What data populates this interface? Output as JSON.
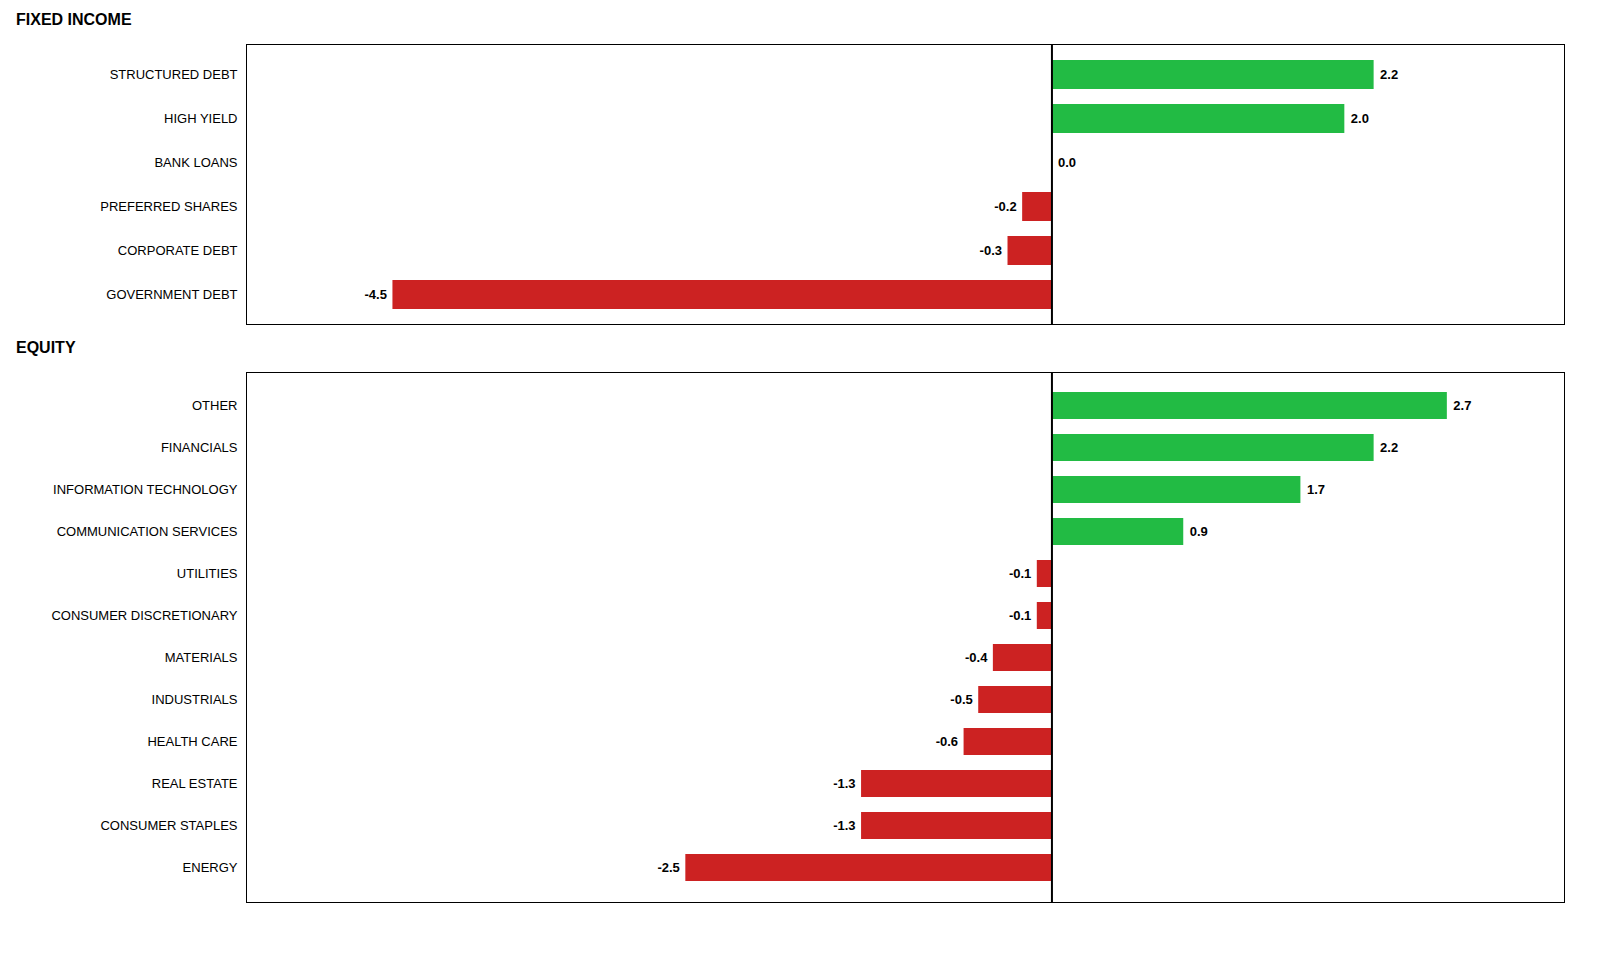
{
  "chart_data": [
    {
      "type": "bar",
      "orientation": "horizontal",
      "title": "FIXED INCOME",
      "categories": [
        "STRUCTURED DEBT",
        "HIGH YIELD",
        "BANK LOANS",
        "PREFERRED SHARES",
        "CORPORATE DEBT",
        "GOVERNMENT DEBT"
      ],
      "values": [
        2.2,
        2.0,
        0.0,
        -0.2,
        -0.3,
        -4.5
      ],
      "value_labels": [
        "2.2",
        "2.0",
        "0.0",
        "-0.2",
        "-0.3",
        "-4.5"
      ],
      "colors": [
        "#22bb44",
        "#22bb44",
        "#000000",
        "#cc2222",
        "#cc2222",
        "#cc2222"
      ],
      "xlim": [
        -5.5,
        3.5
      ],
      "data_labels": true,
      "tick_labels": "y",
      "grid": false
    },
    {
      "type": "bar",
      "orientation": "horizontal",
      "title": "EQUITY",
      "categories": [
        "OTHER",
        "FINANCIALS",
        "INFORMATION TECHNOLOGY",
        "COMMUNICATION SERVICES",
        "UTILITIES",
        "CONSUMER DISCRETIONARY",
        "MATERIALS",
        "INDUSTRIALS",
        "HEALTH CARE",
        "REAL ESTATE",
        "CONSUMER STAPLES",
        "ENERGY"
      ],
      "values": [
        2.7,
        2.2,
        1.7,
        0.9,
        -0.1,
        -0.1,
        -0.4,
        -0.5,
        -0.6,
        -1.3,
        -1.3,
        -2.5
      ],
      "value_labels": [
        "2.7",
        "2.2",
        "1.7",
        "0.9",
        "-0.1",
        "-0.1",
        "-0.4",
        "-0.5",
        "-0.6",
        "-1.3",
        "-1.3",
        "-2.5"
      ],
      "colors": [
        "#22bb44",
        "#22bb44",
        "#22bb44",
        "#22bb44",
        "#cc2222",
        "#cc2222",
        "#cc2222",
        "#cc2222",
        "#cc2222",
        "#cc2222",
        "#cc2222",
        "#cc2222"
      ],
      "xlim": [
        -5.5,
        3.5
      ],
      "data_labels": true,
      "tick_labels": "y",
      "grid": false
    }
  ]
}
